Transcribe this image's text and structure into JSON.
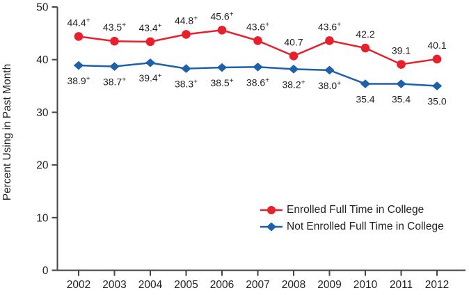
{
  "chart_data": {
    "type": "line",
    "title": "",
    "xlabel": "",
    "ylabel": "Percent Using in Past Month",
    "ylim": [
      0,
      50
    ],
    "y_ticks": [
      0,
      10,
      20,
      30,
      40,
      50
    ],
    "grid": false,
    "legend_position": "inside-lower-right",
    "categories": [
      "2002",
      "2003",
      "2004",
      "2005",
      "2006",
      "2007",
      "2008",
      "2009",
      "2010",
      "2011",
      "2012"
    ],
    "series": [
      {
        "name": "Enrolled Full Time in College",
        "color": "#e8202c",
        "marker": "circle",
        "label_position": "above",
        "values": [
          44.4,
          43.5,
          43.4,
          44.8,
          45.6,
          43.6,
          40.7,
          43.6,
          42.2,
          39.1,
          40.1
        ],
        "labels": [
          "44.4+",
          "43.5+",
          "43.4+",
          "44.8+",
          "45.6+",
          "43.6+",
          "40.7",
          "43.6+",
          "42.2",
          "39.1",
          "40.1"
        ]
      },
      {
        "name": "Not Enrolled Full Time in College",
        "color": "#1f60aa",
        "marker": "diamond",
        "label_position": "below",
        "values": [
          38.9,
          38.7,
          39.4,
          38.3,
          38.5,
          38.6,
          38.2,
          38.0,
          35.4,
          35.4,
          35.0
        ],
        "labels": [
          "38.9+",
          "38.7+",
          "39.4+",
          "38.3+",
          "38.5+",
          "38.6+",
          "38.2+",
          "38.0+",
          "35.4",
          "35.4",
          "35.0"
        ]
      }
    ]
  },
  "colors": {
    "text": "#231f20",
    "axis": "#454545",
    "background": "#ffffff"
  }
}
